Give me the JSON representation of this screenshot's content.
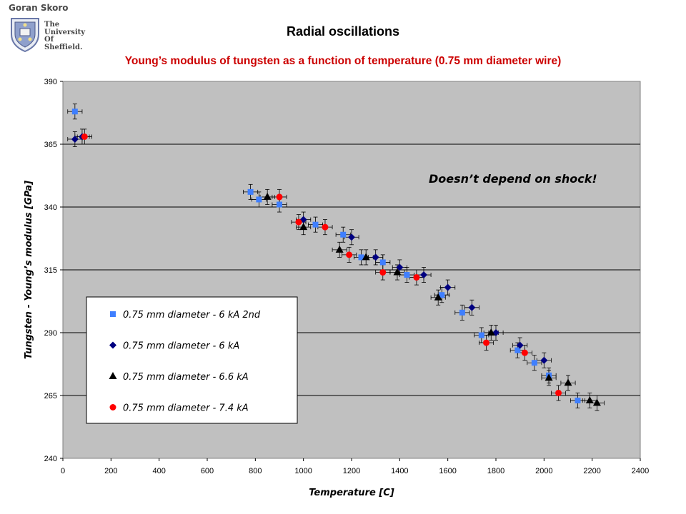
{
  "header": {
    "author": "Goran Skoro",
    "university_lines": [
      "The",
      "University",
      "Of",
      "Sheffield."
    ]
  },
  "slide_title": "Radial oscillations",
  "chart_data": {
    "type": "scatter",
    "title": "Young’s modulus of tungsten as a function of temperature (0.75 mm diameter wire)",
    "xlabel": "Temperature [C]",
    "ylabel": "Tungsten - Young’s modulus [GPa]",
    "xlim": [
      0,
      2400
    ],
    "ylim": [
      240,
      390
    ],
    "x_ticks": [
      0,
      200,
      400,
      600,
      800,
      1000,
      1200,
      1400,
      1600,
      1800,
      2000,
      2200,
      2400
    ],
    "y_ticks": [
      240,
      265,
      290,
      315,
      340,
      365,
      390
    ],
    "grid": "horizontal",
    "background": "#c0c0c0",
    "legend_position": "left",
    "annotation": "Doesn’t depend on shock!",
    "error_bars": {
      "x": 30,
      "y": 3
    },
    "series": [
      {
        "name": "0.75 mm diameter - 6 kA 2nd",
        "marker": "square",
        "color": "#3f7fff",
        "points": [
          [
            50,
            378
          ],
          [
            815,
            343
          ],
          [
            900,
            341
          ],
          [
            780,
            346
          ],
          [
            1050,
            333
          ],
          [
            1165,
            329
          ],
          [
            1240,
            320
          ],
          [
            1330,
            318
          ],
          [
            1430,
            313
          ],
          [
            1575,
            305
          ],
          [
            1660,
            298
          ],
          [
            1740,
            289
          ],
          [
            1890,
            283
          ],
          [
            1960,
            278
          ],
          [
            2020,
            273
          ],
          [
            2140,
            263
          ]
        ]
      },
      {
        "name": "0.75 mm diameter - 6 kA",
        "marker": "diamond",
        "color": "#000080",
        "points": [
          [
            50,
            367
          ],
          [
            80,
            368
          ],
          [
            1000,
            335
          ],
          [
            1200,
            328
          ],
          [
            1300,
            320
          ],
          [
            1400,
            316
          ],
          [
            1500,
            313
          ],
          [
            1600,
            308
          ],
          [
            1700,
            300
          ],
          [
            1800,
            290
          ],
          [
            1900,
            285
          ],
          [
            2000,
            279
          ]
        ]
      },
      {
        "name": "0.75 mm diameter - 6.6 kA",
        "marker": "triangle",
        "color": "#000000",
        "points": [
          [
            850,
            344
          ],
          [
            1000,
            332
          ],
          [
            1150,
            323
          ],
          [
            1260,
            320
          ],
          [
            1390,
            314
          ],
          [
            1560,
            304
          ],
          [
            1780,
            290
          ],
          [
            2020,
            272
          ],
          [
            2100,
            270
          ],
          [
            2190,
            263
          ],
          [
            2220,
            262
          ]
        ]
      },
      {
        "name": "0.75 mm diameter - 7.4 kA",
        "marker": "circle",
        "color": "#ff0000",
        "points": [
          [
            90,
            368
          ],
          [
            900,
            344
          ],
          [
            980,
            334
          ],
          [
            1090,
            332
          ],
          [
            1190,
            321
          ],
          [
            1330,
            314
          ],
          [
            1470,
            312
          ],
          [
            1760,
            286
          ],
          [
            1920,
            282
          ],
          [
            2060,
            266
          ]
        ]
      }
    ]
  }
}
